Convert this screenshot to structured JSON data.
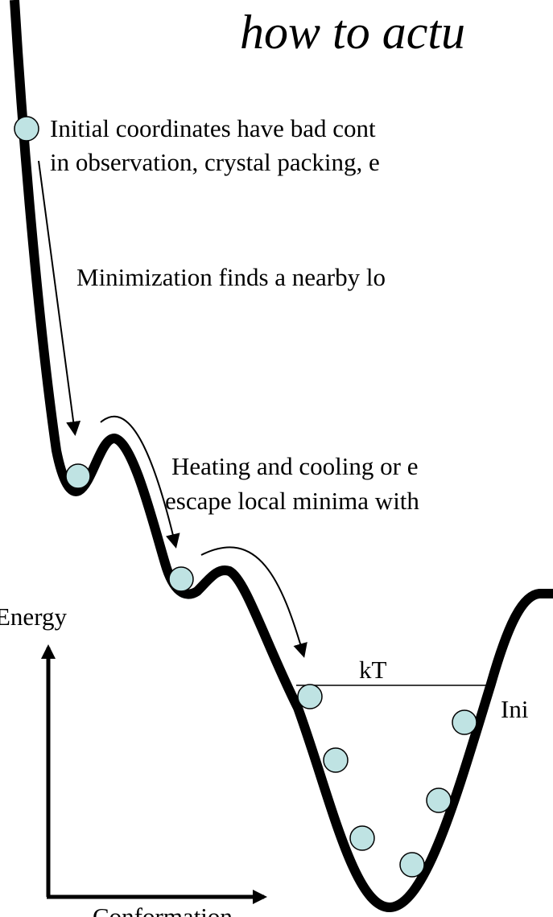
{
  "title": "how to actu",
  "notes": [
    "Initial coordinates have bad cont",
    "in observation, crystal packing, e",
    "Minimization finds a nearby lo",
    "Heating and cooling or e",
    "escape local minima with"
  ],
  "axes": {
    "y_label": "Energy",
    "x_label": "Conformation"
  },
  "kt_label": "kT",
  "right_label": "Ini"
}
